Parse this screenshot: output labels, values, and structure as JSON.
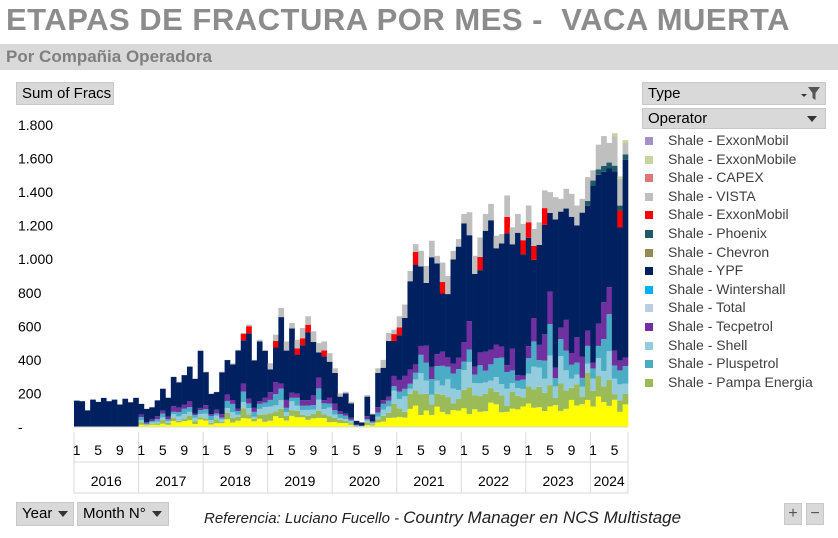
{
  "header": {
    "title": "ETAPAS DE FRACTURA POR MES -  VACA MUERTA",
    "subtitle": "Por Compañia Operadora"
  },
  "fields": {
    "values_button": "Sum of Fracs",
    "type_filter": "Type",
    "operator_filter": "Operator",
    "year_button": "Year",
    "month_button": "Month N°"
  },
  "footer": {
    "reference_prefix": "Referencia: Luciano Fucello - ",
    "reference_suffix": "Country Manager en NCS Multistage"
  },
  "zoom": {
    "plus": "+",
    "minus": "−"
  },
  "chart_data": {
    "type": "bar",
    "stacked": true,
    "y_ticks": [
      "1.800",
      "1.600",
      "1.400",
      "1.200",
      "1.000",
      "800",
      "600",
      "400",
      "200",
      "-"
    ],
    "ylim": [
      0,
      1800
    ],
    "years": [
      "2016",
      "2017",
      "2018",
      "2019",
      "2020",
      "2021",
      "2022",
      "2023",
      "2024"
    ],
    "months_per_year": [
      12,
      12,
      12,
      12,
      12,
      12,
      12,
      12,
      7
    ],
    "month_tick_labels": [
      "1",
      "5",
      "9"
    ],
    "series": [
      {
        "name": "Shale - Pampa Energia",
        "color": "#9bbb59"
      },
      {
        "name": "Shale - Pluspetrol",
        "color": "#4bacc6"
      },
      {
        "name": "Shale - Shell",
        "color": "#93cddd"
      },
      {
        "name": "Shale - Tecpetrol",
        "color": "#7030a0"
      },
      {
        "name": "Shale - Total",
        "color": "#b9cde5"
      },
      {
        "name": "Shale - Wintershall",
        "color": "#00b0f0"
      },
      {
        "name": "Shale - YPF",
        "color": "#002060"
      },
      {
        "name": "Shale - Chevron",
        "color": "#948a54"
      },
      {
        "name": "Shale - Phoenix",
        "color": "#215968"
      },
      {
        "name": "Shale - ExxonMobil",
        "color": "#ff0000"
      },
      {
        "name": "Shale - VISTA",
        "color": "#bfbfbf"
      },
      {
        "name": "Shale - CAPEX",
        "color": "#da7878"
      },
      {
        "name": "Shale - ExxonMobile",
        "color": "#c3d69b"
      },
      {
        "name": "Shale -  ExxonMobil",
        "color": "#a391c6"
      }
    ],
    "base_series": {
      "color": "#ffff00"
    },
    "totals": [
      160,
      155,
      100,
      165,
      150,
      175,
      155,
      165,
      135,
      170,
      150,
      175,
      140,
      110,
      120,
      160,
      230,
      175,
      300,
      270,
      310,
      360,
      290,
      460,
      330,
      200,
      210,
      330,
      400,
      380,
      460,
      560,
      610,
      400,
      520,
      460,
      380,
      550,
      710,
      510,
      620,
      520,
      590,
      660,
      570,
      500,
      510,
      440,
      350,
      200,
      210,
      150,
      40,
      30,
      190,
      80,
      350,
      400,
      560,
      580,
      660,
      730,
      930,
      1090,
      1050,
      960,
      1110,
      1020,
      980,
      900,
      1050,
      1120,
      1270,
      1280,
      1020,
      1130,
      1270,
      1330,
      1140,
      1150,
      1380,
      1190,
      1270,
      1210,
      1320,
      1180,
      1220,
      1410,
      1400,
      1370,
      1360,
      1420,
      1390,
      1320,
      1360,
      1460,
      1500,
      1650,
      1700,
      1660,
      1700,
      1450,
      1660
    ]
  }
}
